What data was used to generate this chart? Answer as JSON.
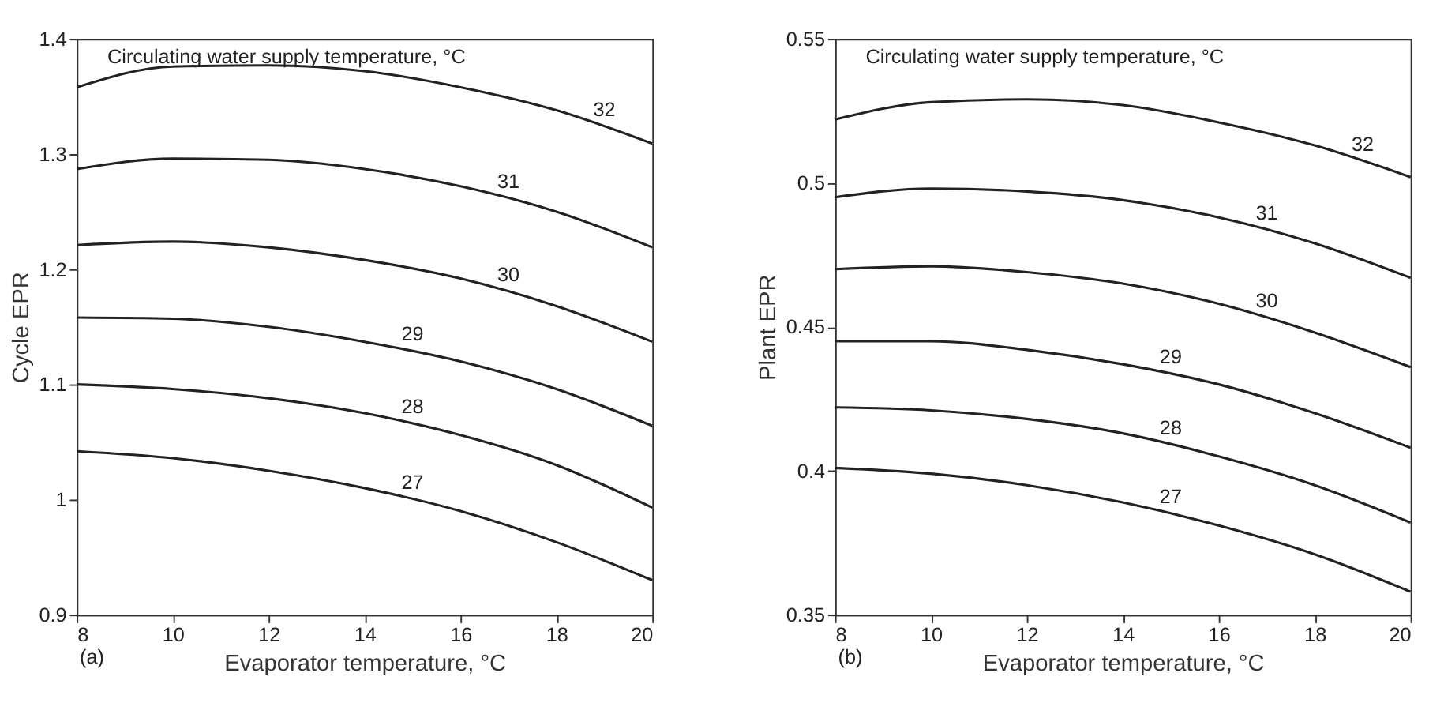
{
  "chart_data": [
    {
      "type": "line",
      "xlabel": "Evaporator temperature, °C",
      "ylabel": "Cycle EPR",
      "legend_title": "Circulating water supply temperature, °C",
      "annotations": [
        "(a)"
      ],
      "x": [
        8,
        10,
        12,
        14,
        16,
        18,
        20
      ],
      "xlim": [
        8,
        20
      ],
      "xticks": [
        8,
        10,
        12,
        14,
        16,
        18,
        20
      ],
      "ylim": [
        0.9,
        1.4
      ],
      "yticks": [
        0.9,
        1,
        1.1,
        1.2,
        1.3,
        1.4
      ],
      "grid": false,
      "legend": false,
      "marker": "none",
      "line_style": "solid",
      "series": [
        {
          "name": "27",
          "color": "#222222",
          "values": [
            1.042,
            1.036,
            1.025,
            1.01,
            0.99,
            0.963,
            0.93
          ]
        },
        {
          "name": "28",
          "color": "#222222",
          "values": [
            1.1,
            1.096,
            1.088,
            1.075,
            1.056,
            1.03,
            0.993
          ]
        },
        {
          "name": "29",
          "color": "#222222",
          "values": [
            1.158,
            1.157,
            1.15,
            1.137,
            1.12,
            1.096,
            1.064
          ]
        },
        {
          "name": "30",
          "color": "#222222",
          "values": [
            1.221,
            1.224,
            1.219,
            1.208,
            1.192,
            1.168,
            1.137
          ]
        },
        {
          "name": "31",
          "color": "#222222",
          "values": [
            1.287,
            1.296,
            1.295,
            1.287,
            1.272,
            1.25,
            1.219
          ]
        },
        {
          "name": "32",
          "color": "#222222",
          "values": [
            1.358,
            1.376,
            1.377,
            1.372,
            1.358,
            1.338,
            1.309
          ]
        }
      ]
    },
    {
      "type": "line",
      "xlabel": "Evaporator temperature, °C",
      "ylabel": "Plant EPR",
      "legend_title": "Circulating water supply temperature, °C",
      "annotations": [
        "(b)"
      ],
      "x": [
        8,
        10,
        12,
        14,
        16,
        18,
        20
      ],
      "xlim": [
        8,
        20
      ],
      "xticks": [
        8,
        10,
        12,
        14,
        16,
        18,
        20
      ],
      "ylim": [
        0.35,
        0.55
      ],
      "yticks": [
        0.35,
        0.4,
        0.45,
        0.5,
        0.55
      ],
      "grid": false,
      "legend": false,
      "marker": "none",
      "line_style": "solid",
      "series": [
        {
          "name": "27",
          "color": "#222222",
          "values": [
            0.401,
            0.399,
            0.395,
            0.389,
            0.381,
            0.371,
            0.358
          ]
        },
        {
          "name": "28",
          "color": "#222222",
          "values": [
            0.422,
            0.421,
            0.418,
            0.413,
            0.405,
            0.395,
            0.382
          ]
        },
        {
          "name": "29",
          "color": "#222222",
          "values": [
            0.445,
            0.445,
            0.442,
            0.437,
            0.43,
            0.42,
            0.408
          ]
        },
        {
          "name": "30",
          "color": "#222222",
          "values": [
            0.47,
            0.471,
            0.469,
            0.465,
            0.458,
            0.448,
            0.436
          ]
        },
        {
          "name": "31",
          "color": "#222222",
          "values": [
            0.495,
            0.498,
            0.497,
            0.494,
            0.488,
            0.479,
            0.467
          ]
        },
        {
          "name": "32",
          "color": "#222222",
          "values": [
            0.522,
            0.528,
            0.529,
            0.527,
            0.521,
            0.513,
            0.502
          ]
        }
      ]
    }
  ]
}
